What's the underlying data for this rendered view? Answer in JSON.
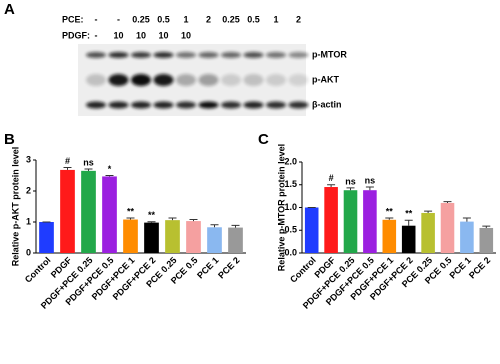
{
  "panels": [
    "A",
    "B",
    "C"
  ],
  "blot": {
    "row_labels": [
      "PCE:",
      "PDGF:"
    ],
    "pce": [
      "-",
      "-",
      "0.25",
      "0.5",
      "1",
      "2",
      "0.25",
      "0.5",
      "1",
      "2"
    ],
    "pdgf": [
      "-",
      "10",
      "10",
      "10",
      "10",
      null,
      null,
      null,
      null,
      null
    ],
    "bands": [
      "p-MTOR",
      "p-AKT",
      "β-actin"
    ]
  },
  "chart_data": [
    {
      "type": "bar",
      "y_label": "Relative p-AKT protein level",
      "categories": [
        "Control",
        "PDGF",
        "PDGF+PCE 0.25",
        "PDGF+PCE 0.5",
        "PDGF+PCE 1",
        "PDGF+PCE 2",
        "PCE 0.25",
        "PCE 0.5",
        "PCE 1",
        "PCE 2"
      ],
      "values": [
        1,
        2.68,
        2.65,
        2.47,
        1.08,
        0.98,
        1.06,
        1.03,
        0.83,
        0.82
      ],
      "errors": [
        0,
        0.08,
        0.06,
        0.03,
        0.05,
        0.03,
        0.07,
        0.05,
        0.08,
        0.07
      ],
      "annotations": [
        null,
        "#",
        "ns",
        "*",
        "**",
        "**",
        null,
        null,
        null,
        null
      ],
      "colors": [
        "#1f3cff",
        "#ff1a1a",
        "#22a84a",
        "#9b20e0",
        "#ff8c00",
        "#000000",
        "#b8c030",
        "#f5a0a0",
        "#8ab8f0",
        "#999999"
      ],
      "ylim": [
        0,
        3
      ],
      "yticks": [
        0,
        1,
        2,
        3
      ]
    },
    {
      "type": "bar",
      "y_label": "Relative p-MTOR protein level",
      "categories": [
        "Control",
        "PDGF",
        "PDGF+PCE 0.25",
        "PDGF+PCE 0.5",
        "PDGF+PCE 1",
        "PDGF+PCE 2",
        "PCE 0.25",
        "PCE 0.5",
        "PCE 1",
        "PCE 2"
      ],
      "values": [
        1.0,
        1.45,
        1.38,
        1.38,
        0.73,
        0.6,
        0.88,
        1.1,
        0.69,
        0.55
      ],
      "errors": [
        0,
        0.05,
        0.05,
        0.07,
        0.04,
        0.12,
        0.04,
        0.03,
        0.08,
        0.04
      ],
      "annotations": [
        null,
        "#",
        "ns",
        "ns",
        "**",
        "**",
        null,
        null,
        null,
        null
      ],
      "colors": [
        "#1f3cff",
        "#ff1a1a",
        "#22a84a",
        "#9b20e0",
        "#ff8c00",
        "#000000",
        "#b8c030",
        "#f5a0a0",
        "#8ab8f0",
        "#999999"
      ],
      "ylim": [
        0,
        2
      ],
      "yticks": [
        {
          "value": 0,
          "label": "0.0"
        },
        {
          "value": 0.5,
          "label": "0.5"
        },
        {
          "value": 1,
          "label": "1.0"
        },
        {
          "value": 1.5,
          "label": "1.5"
        },
        {
          "value": 2,
          "label": "2.0"
        }
      ]
    }
  ]
}
